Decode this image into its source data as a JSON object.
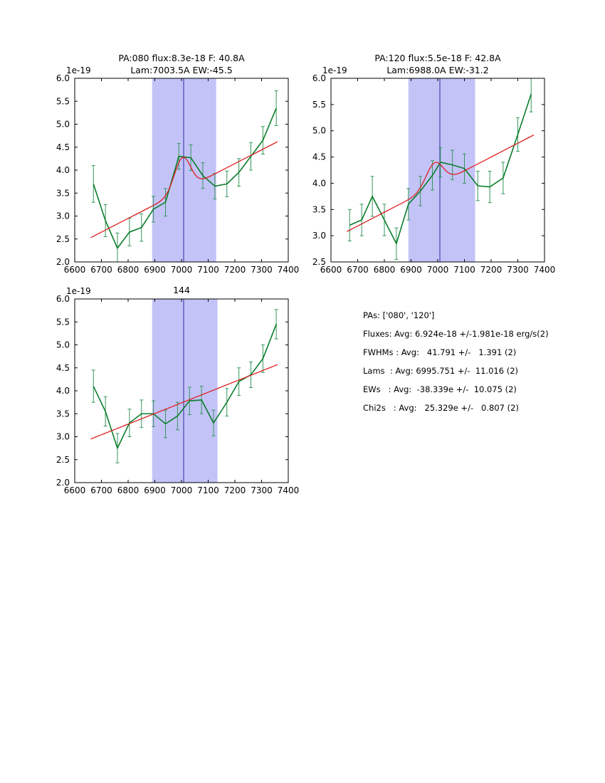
{
  "colors": {
    "background": "#ffffff",
    "axis": "#000000",
    "text": "#000000",
    "line": "#0a7d2a",
    "errorbar": "#34975a",
    "fit": "#dd2222",
    "band": "#c3c3f8",
    "vline": "#2e2e9e"
  },
  "chart_data": [
    {
      "type": "line",
      "title_lines": [
        "PA:080 flux:8.3e-18 F: 40.8A",
        "Lam:7003.5A EW:-45.5"
      ],
      "offset_label": "1e-19",
      "xlim": [
        6600,
        7400
      ],
      "ylim": [
        2.0,
        6.0
      ],
      "xticks": [
        "6600",
        "6700",
        "6800",
        "6900",
        "7000",
        "7100",
        "7200",
        "7300",
        "7400"
      ],
      "yticks": [
        "2.0",
        "2.5",
        "3.0",
        "3.5",
        "4.0",
        "4.5",
        "5.0",
        "5.5",
        "6.0"
      ],
      "band": [
        6890,
        7130
      ],
      "vline": 7008,
      "series": {
        "name": "spectrum",
        "x": [
          6670,
          6715,
          6760,
          6805,
          6850,
          6895,
          6940,
          6990,
          7035,
          7080,
          7125,
          7170,
          7215,
          7260,
          7305,
          7355
        ],
        "y": [
          3.7,
          2.9,
          2.3,
          2.65,
          2.75,
          3.15,
          3.3,
          4.3,
          4.27,
          3.88,
          3.65,
          3.7,
          3.95,
          4.3,
          4.65,
          5.35
        ],
        "yerr": [
          0.4,
          0.35,
          0.33,
          0.3,
          0.3,
          0.28,
          0.3,
          0.28,
          0.28,
          0.28,
          0.28,
          0.28,
          0.3,
          0.3,
          0.3,
          0.38
        ]
      },
      "fit": {
        "x_range": [
          6660,
          7360
        ],
        "cont": [
          2.53,
          4.62
        ],
        "amp": 0.72,
        "mu": 7003.5,
        "sigma": 30
      }
    },
    {
      "type": "line",
      "title_lines": [
        "PA:120 flux:5.5e-18 F: 42.8A",
        "Lam:6988.0A EW:-31.2"
      ],
      "offset_label": "1e-19",
      "xlim": [
        6600,
        7400
      ],
      "ylim": [
        2.5,
        6.0
      ],
      "xticks": [
        "6600",
        "6700",
        "6800",
        "6900",
        "7000",
        "7100",
        "7200",
        "7300",
        "7400"
      ],
      "yticks": [
        "2.5",
        "3.0",
        "3.5",
        "4.0",
        "4.5",
        "5.0",
        "5.5",
        "6.0"
      ],
      "band": [
        6890,
        7140
      ],
      "vline": 7008,
      "series": {
        "name": "spectrum",
        "x": [
          6670,
          6715,
          6755,
          6800,
          6845,
          6890,
          6935,
          6980,
          7010,
          7055,
          7100,
          7150,
          7195,
          7245,
          7300,
          7350
        ],
        "y": [
          3.2,
          3.3,
          3.75,
          3.3,
          2.85,
          3.6,
          3.85,
          4.15,
          4.4,
          4.35,
          4.28,
          3.95,
          3.93,
          4.1,
          4.93,
          5.7
        ],
        "yerr": [
          0.3,
          0.3,
          0.38,
          0.3,
          0.3,
          0.3,
          0.28,
          0.28,
          0.28,
          0.28,
          0.28,
          0.28,
          0.3,
          0.3,
          0.32,
          0.34
        ]
      },
      "fit": {
        "x_range": [
          6660,
          7360
        ],
        "cont": [
          3.08,
          4.92
        ],
        "amp": 0.45,
        "mu": 6988,
        "sigma": 32
      }
    },
    {
      "type": "line",
      "title_lines": [
        "144"
      ],
      "offset_label": "1e-19",
      "xlim": [
        6600,
        7400
      ],
      "ylim": [
        2.0,
        6.0
      ],
      "xticks": [
        "6600",
        "6700",
        "6800",
        "6900",
        "7000",
        "7100",
        "7200",
        "7300",
        "7400"
      ],
      "yticks": [
        "2.0",
        "2.5",
        "3.0",
        "3.5",
        "4.0",
        "4.5",
        "5.0",
        "5.5",
        "6.0"
      ],
      "band": [
        6890,
        7135
      ],
      "vline": 7008,
      "series": {
        "name": "spectrum",
        "x": [
          6670,
          6715,
          6760,
          6805,
          6850,
          6895,
          6940,
          6985,
          7030,
          7075,
          7120,
          7170,
          7215,
          7260,
          7305,
          7355
        ],
        "y": [
          4.1,
          3.55,
          2.75,
          3.3,
          3.5,
          3.5,
          3.28,
          3.45,
          3.78,
          3.8,
          3.3,
          3.75,
          4.2,
          4.35,
          4.7,
          5.45
        ],
        "yerr": [
          0.35,
          0.32,
          0.32,
          0.3,
          0.3,
          0.28,
          0.3,
          0.3,
          0.3,
          0.3,
          0.28,
          0.3,
          0.3,
          0.28,
          0.3,
          0.32
        ]
      },
      "fit": {
        "x_range": [
          6660,
          7360
        ],
        "cont": [
          2.95,
          4.57
        ],
        "amp": 0,
        "mu": 7008,
        "sigma": 30
      }
    }
  ],
  "stats_panel": {
    "lines": [
      "PAs: ['080', '120']",
      "Fluxes: Avg: 6.924e-18 +/-1.981e-18 erg/s(2)",
      "FWHMs : Avg:   41.791 +/-   1.391 (2)",
      "Lams  : Avg: 6995.751 +/-  11.016 (2)",
      "EWs   : Avg:  -38.339e +/-  10.075 (2)",
      "Chi2s   : Avg:   25.329e +/-   0.807 (2)"
    ]
  }
}
